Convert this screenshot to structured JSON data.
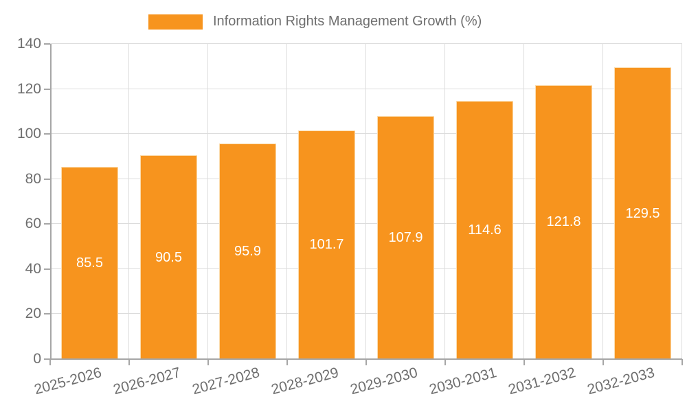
{
  "chart_data": {
    "type": "bar",
    "series_name": "Information Rights Management Growth (%)",
    "categories": [
      "2025-2026",
      "2026-2027",
      "2027-2028",
      "2028-2029",
      "2029-2030",
      "2030-2031",
      "2031-2032",
      "2032-2033"
    ],
    "values": [
      85.5,
      90.5,
      95.9,
      101.7,
      107.9,
      114.6,
      121.8,
      129.5
    ],
    "value_labels": [
      "85.5",
      "90.5",
      "95.9",
      "101.7",
      "107.9",
      "114.6",
      "121.8",
      "129.5"
    ],
    "title": "",
    "xlabel": "",
    "ylabel": "",
    "ylim": [
      0,
      140
    ],
    "yticks": [
      0,
      20,
      40,
      60,
      80,
      100,
      120,
      140
    ],
    "grid": "horizontal-and-vertical",
    "legend_position": "top-center",
    "colors": {
      "bar": "#f7941e",
      "bar_border": "#fbdcae",
      "grid": "#dcdcdc",
      "axis": "#a6a6a6",
      "tick_text": "#6e6e6e",
      "value_text": "#ffffff"
    }
  }
}
